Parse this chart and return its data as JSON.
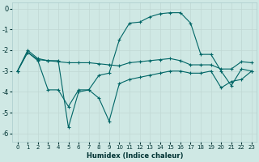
{
  "xlabel": "Humidex (Indice chaleur)",
  "background_color": "#cfe8e4",
  "grid_color": "#c0d8d4",
  "line_color": "#006666",
  "xlim": [
    -0.5,
    23.5
  ],
  "ylim": [
    -6.4,
    0.3
  ],
  "xticks": [
    0,
    1,
    2,
    3,
    4,
    5,
    6,
    7,
    8,
    9,
    10,
    11,
    12,
    13,
    14,
    15,
    16,
    17,
    18,
    19,
    20,
    21,
    22,
    23
  ],
  "yticks": [
    0,
    -1,
    -2,
    -3,
    -4,
    -5,
    -6
  ],
  "line1_x": [
    0,
    1,
    2,
    3,
    4,
    5,
    6,
    7,
    8,
    9,
    10,
    11,
    12,
    13,
    14,
    15,
    16,
    17,
    18,
    19,
    20,
    21,
    22,
    23
  ],
  "line1_y": [
    -3.0,
    -2.0,
    -2.4,
    -2.5,
    -2.5,
    -5.7,
    -4.0,
    -3.9,
    -3.2,
    -3.1,
    -1.5,
    -0.7,
    -0.65,
    -0.4,
    -0.25,
    -0.2,
    -0.2,
    -0.7,
    -2.2,
    -2.2,
    -3.0,
    -3.7,
    -2.9,
    -3.0
  ],
  "line2_x": [
    0,
    1,
    2,
    3,
    4,
    5,
    6,
    7,
    8,
    9,
    10,
    11,
    12,
    13,
    14,
    15,
    16,
    17,
    18,
    19,
    20,
    21,
    22,
    23
  ],
  "line2_y": [
    -3.0,
    -2.1,
    -2.45,
    -2.5,
    -2.55,
    -2.6,
    -2.6,
    -2.6,
    -2.65,
    -2.7,
    -2.75,
    -2.6,
    -2.55,
    -2.5,
    -2.45,
    -2.4,
    -2.5,
    -2.7,
    -2.7,
    -2.7,
    -2.9,
    -2.9,
    -2.55,
    -2.6
  ],
  "line3_x": [
    0,
    1,
    2,
    3,
    4,
    5,
    6,
    7,
    8,
    9,
    10,
    11,
    12,
    13,
    14,
    15,
    16,
    17,
    18,
    19,
    20,
    21,
    22,
    23
  ],
  "line3_y": [
    -3.0,
    -2.1,
    -2.5,
    -3.9,
    -3.9,
    -4.7,
    -3.9,
    -3.9,
    -4.3,
    -5.4,
    -3.6,
    -3.4,
    -3.3,
    -3.2,
    -3.1,
    -3.0,
    -3.0,
    -3.1,
    -3.1,
    -3.0,
    -3.8,
    -3.5,
    -3.4,
    -3.0
  ],
  "figsize": [
    3.2,
    2.0
  ],
  "dpi": 100
}
